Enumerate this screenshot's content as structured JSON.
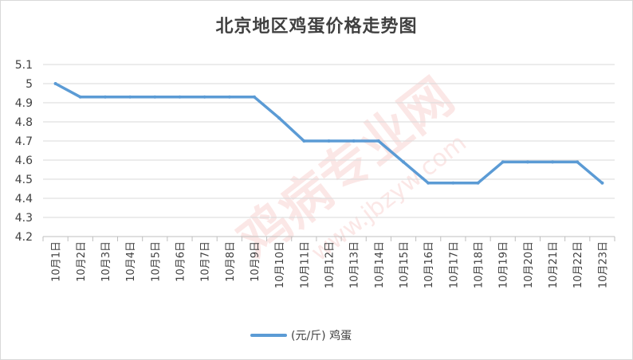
{
  "chart_data": {
    "type": "line",
    "title": "北京地区鸡蛋价格走势图",
    "categories": [
      "10月1日",
      "10月2日",
      "10月3日",
      "10月4日",
      "10月5日",
      "10月6日",
      "10月7日",
      "10月8日",
      "10月9日",
      "10月10日",
      "10月11日",
      "10月12日",
      "10月13日",
      "10月14日",
      "10月15日",
      "10月16日",
      "10月17日",
      "10月18日",
      "10月19日",
      "10月20日",
      "10月21日",
      "10月22日",
      "10月23日"
    ],
    "series": [
      {
        "name": "(元/斤) 鸡蛋",
        "color": "#5b9bd5",
        "values": [
          5.0,
          4.93,
          4.93,
          4.93,
          4.93,
          4.93,
          4.93,
          4.93,
          4.93,
          4.82,
          4.7,
          4.7,
          4.7,
          4.7,
          4.59,
          4.48,
          4.48,
          4.48,
          4.59,
          4.59,
          4.59,
          4.59,
          4.48
        ]
      }
    ],
    "ylim": [
      4.2,
      5.1
    ],
    "yticks": [
      4.2,
      4.3,
      4.4,
      4.5,
      4.6,
      4.7,
      4.8,
      4.9,
      5,
      5.1
    ],
    "grid": true,
    "legend": "bottom",
    "xlabel": "",
    "ylabel": ""
  },
  "watermark": {
    "main_text": "鸡病专业网",
    "url_text": "www.jbzyw.com"
  }
}
